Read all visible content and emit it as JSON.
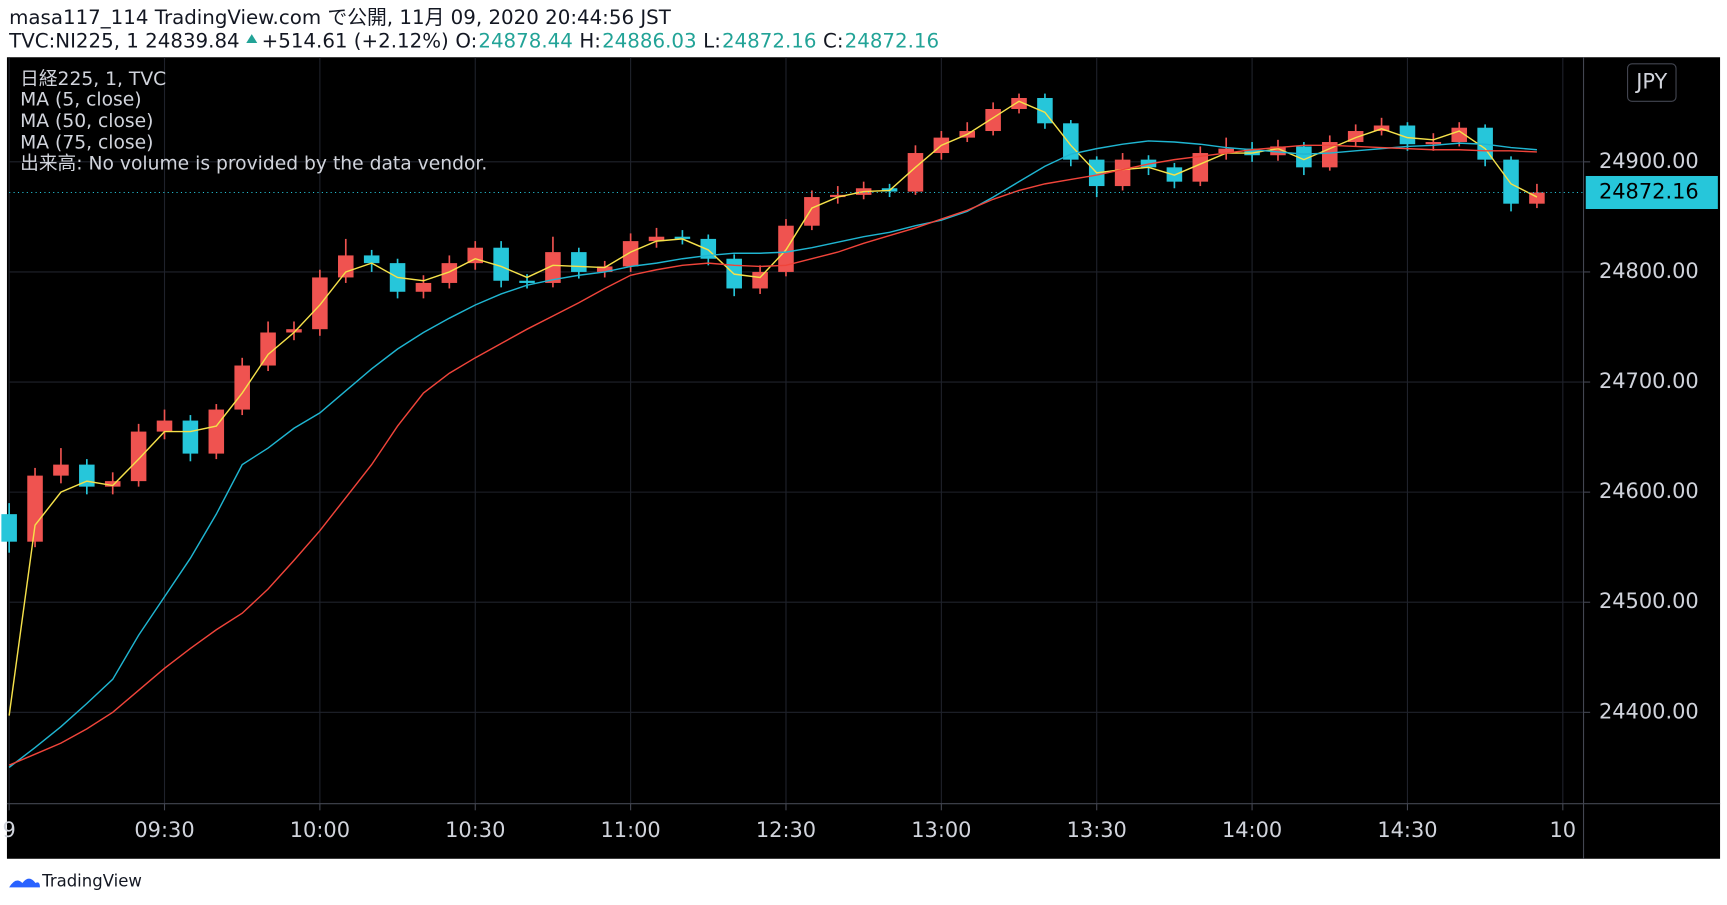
{
  "header": {
    "publisher": "masa117_114 TradingView.com で公開, 11月 09, 2020 20:44:56 JST",
    "symbol": "TVC:NI225, 1 24839.84",
    "change": "+514.61 (+2.12%)",
    "ohlc": [
      {
        "label": "O:",
        "value": "24878.44"
      },
      {
        "label": "H:",
        "value": "24886.03"
      },
      {
        "label": "L:",
        "value": "24872.16"
      },
      {
        "label": "C:",
        "value": "24872.16"
      }
    ]
  },
  "chart_data": {
    "type": "candlestick",
    "legend_title": "日経225, 1, TVC",
    "volume_note": "出来高: No volume is provided by the data vendor.",
    "currency": "JPY",
    "up_color": "#ef5350",
    "down_color": "#26c6da",
    "x": [
      0,
      5,
      10,
      15,
      20,
      25,
      30,
      35,
      40,
      45,
      50,
      55,
      60,
      65,
      70,
      75,
      80,
      85,
      90,
      95,
      100,
      105,
      110,
      115,
      120,
      125,
      130,
      135,
      140,
      145,
      150,
      155,
      160,
      165,
      170,
      175,
      180,
      185,
      190,
      195,
      200,
      205,
      210,
      215,
      220,
      225,
      230,
      235,
      240,
      245,
      250,
      255,
      260,
      265,
      270,
      275,
      280,
      285,
      290,
      295
    ],
    "open": [
      24580,
      24555,
      24615,
      24625,
      24605,
      24610,
      24655,
      24665,
      24635,
      24675,
      24715,
      24745,
      24748,
      24795,
      24815,
      24808,
      24782,
      24790,
      24808,
      24822,
      24792,
      24790,
      24818,
      24800,
      24805,
      24828,
      24832,
      24830,
      24812,
      24785,
      24800,
      24842,
      24868,
      24870,
      24876,
      24873,
      24908,
      24922,
      24928,
      24948,
      24958,
      24935,
      24902,
      24878,
      24902,
      24895,
      24882,
      24908,
      24912,
      24906,
      24914,
      24895,
      24918,
      24928,
      24933,
      24916,
      24918,
      24931,
      24902,
      24862
    ],
    "high": [
      24590,
      24622,
      24640,
      24630,
      24618,
      24662,
      24675,
      24670,
      24680,
      24722,
      24755,
      24755,
      24802,
      24830,
      24820,
      24812,
      24797,
      24815,
      24828,
      24828,
      24798,
      24832,
      24822,
      24810,
      24835,
      24840,
      24838,
      24834,
      24816,
      24806,
      24848,
      24874,
      24878,
      24882,
      24880,
      24915,
      24928,
      24936,
      24954,
      24962,
      24962,
      24938,
      24905,
      24908,
      24906,
      24899,
      24914,
      24922,
      24918,
      24920,
      24918,
      24924,
      24934,
      24940,
      24936,
      24926,
      24936,
      24934,
      24905,
      24880
    ],
    "low": [
      24545,
      24550,
      24608,
      24598,
      24598,
      24605,
      24648,
      24628,
      24630,
      24670,
      24710,
      24738,
      24742,
      24790,
      24800,
      24776,
      24776,
      24785,
      24802,
      24786,
      24785,
      24786,
      24794,
      24795,
      24800,
      24822,
      24825,
      24806,
      24778,
      24780,
      24796,
      24838,
      24862,
      24866,
      24868,
      24870,
      24902,
      24918,
      24924,
      24944,
      24930,
      24896,
      24868,
      24874,
      24888,
      24876,
      24878,
      24902,
      24900,
      24901,
      24888,
      24892,
      24914,
      24924,
      24910,
      24910,
      24914,
      24896,
      24855,
      24858
    ],
    "close": [
      24555,
      24615,
      24625,
      24605,
      24610,
      24655,
      24665,
      24635,
      24675,
      24715,
      24745,
      24748,
      24795,
      24815,
      24808,
      24782,
      24790,
      24808,
      24822,
      24792,
      24790,
      24818,
      24800,
      24805,
      24828,
      24832,
      24830,
      24812,
      24785,
      24800,
      24842,
      24868,
      24870,
      24876,
      24873,
      24908,
      24922,
      24928,
      24948,
      24958,
      24935,
      24902,
      24878,
      24902,
      24895,
      24882,
      24908,
      24912,
      24906,
      24914,
      24895,
      24918,
      24928,
      24933,
      24916,
      24918,
      24931,
      24902,
      24862,
      24872.16
    ],
    "series": [
      {
        "name": "MA (5, close)",
        "color": "#f5e14a",
        "values": [
          24397,
          24570,
          24600,
          24610,
          24606,
          24630,
          24655,
          24655,
          24660,
          24690,
          24725,
          24745,
          24770,
          24800,
          24808,
          24795,
          24792,
          24800,
          24812,
          24805,
          24795,
          24806,
          24805,
          24804,
          24818,
          24828,
          24830,
          24820,
          24798,
          24795,
          24820,
          24858,
          24868,
          24873,
          24874,
          24895,
          24915,
          24925,
          24940,
          24955,
          24945,
          24915,
          24890,
          24893,
          24895,
          24888,
          24898,
          24908,
          24908,
          24912,
          24902,
          24912,
          24922,
          24930,
          24922,
          24920,
          24928,
          24912,
          24880,
          24868
        ]
      },
      {
        "name": "MA (50, close)",
        "color": "#1fb5d1",
        "values": [
          24350,
          24368,
          24387,
          24408,
          24430,
          24470,
          24505,
          24540,
          24580,
          24625,
          24640,
          24658,
          24672,
          24692,
          24712,
          24730,
          24745,
          24758,
          24770,
          24780,
          24788,
          24793,
          24797,
          24800,
          24805,
          24808,
          24812,
          24815,
          24817,
          24817,
          24818,
          24822,
          24827,
          24832,
          24836,
          24842,
          24847,
          24855,
          24868,
          24882,
          24896,
          24907,
          24912,
          24916,
          24919,
          24918,
          24916,
          24913,
          24911,
          24909,
          24907,
          24908,
          24910,
          24912,
          24914,
          24915,
          24917,
          24916,
          24913,
          24911
        ]
      },
      {
        "name": "MA (75, close)",
        "color": "#f0443a",
        "values": [
          24352,
          24362,
          24372,
          24385,
          24400,
          24420,
          24440,
          24458,
          24475,
          24490,
          24512,
          24538,
          24565,
          24595,
          24625,
          24660,
          24690,
          24708,
          24722,
          24735,
          24748,
          24760,
          24772,
          24785,
          24797,
          24802,
          24806,
          24808,
          24806,
          24805,
          24806,
          24812,
          24818,
          24826,
          24833,
          24840,
          24848,
          24856,
          24866,
          24874,
          24880,
          24884,
          24888,
          24893,
          24898,
          24902,
          24905,
          24908,
          24911,
          24913,
          24915,
          24915,
          24914,
          24913,
          24912,
          24911,
          24911,
          24910,
          24910,
          24909
        ]
      }
    ],
    "xlim": [
      0,
      304
    ],
    "xticks": [
      {
        "value": 0,
        "label": "9"
      },
      {
        "value": 30,
        "label": "09:30"
      },
      {
        "value": 60,
        "label": "10:00"
      },
      {
        "value": 90,
        "label": "10:30"
      },
      {
        "value": 120,
        "label": "11:00"
      },
      {
        "value": 150,
        "label": "12:30"
      },
      {
        "value": 180,
        "label": "13:00"
      },
      {
        "value": 210,
        "label": "13:30"
      },
      {
        "value": 240,
        "label": "14:00"
      },
      {
        "value": 270,
        "label": "14:30"
      },
      {
        "value": 300,
        "label": "10"
      }
    ],
    "ylim": [
      24317,
      24995
    ],
    "yticks": [
      {
        "value": 24400,
        "label": "24400.00"
      },
      {
        "value": 24500,
        "label": "24500.00"
      },
      {
        "value": 24600,
        "label": "24600.00"
      },
      {
        "value": 24700,
        "label": "24700.00"
      },
      {
        "value": 24800,
        "label": "24800.00"
      },
      {
        "value": 24900,
        "label": "24900.00"
      }
    ],
    "grid": true
  },
  "footer": {
    "brand": "TradingView"
  }
}
